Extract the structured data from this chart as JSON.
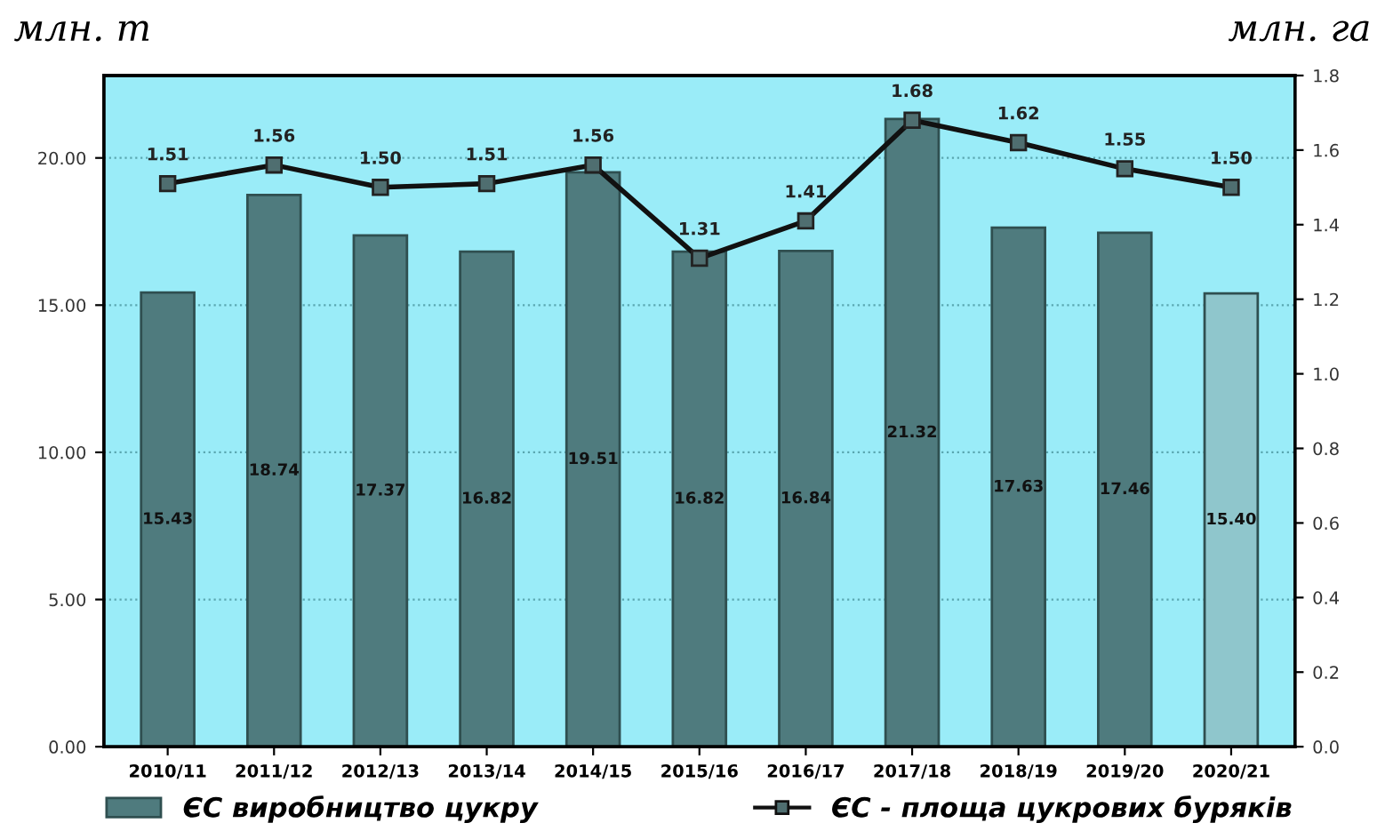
{
  "chart_data": {
    "type": "bar",
    "ylabel": "млн. т",
    "y2label": "млн. га",
    "categories": [
      "2010/11",
      "2011/12",
      "2012/13",
      "2013/14",
      "2014/15",
      "2015/16",
      "2016/17",
      "2017/18",
      "2018/19",
      "2019/20",
      "2020/21"
    ],
    "series": [
      {
        "name": "ЄС виробництво цукру",
        "value_labels": [
          "15.43",
          "18.74",
          "17.37",
          "16.82",
          "19.51",
          "16.82",
          "16.84",
          "21.32",
          "17.63",
          "17.46",
          "15.40"
        ],
        "color": "#4f7b7e",
        "colors": [
          "#4f7b7e",
          "#4f7b7e",
          "#4f7b7e",
          "#4f7b7e",
          "#4f7b7e",
          "#4f7b7e",
          "#4f7b7e",
          "#4f7b7e",
          "#4f7b7e",
          "#4f7b7e",
          "#8fc6cc"
        ],
        "values": [
          15.43,
          18.74,
          17.37,
          16.82,
          19.51,
          16.82,
          16.84,
          21.32,
          17.63,
          17.46,
          15.4
        ]
      },
      {
        "name": "ЄС - площа цукрових буряків",
        "type": "line",
        "axis": "y2",
        "color": "#111111",
        "marker": "square",
        "value_labels": [
          "1.51",
          "1.56",
          "1.50",
          "1.51",
          "1.56",
          "1.31",
          "1.41",
          "1.68",
          "1.62",
          "1.55",
          "1.50"
        ],
        "values": [
          1.51,
          1.56,
          1.5,
          1.51,
          1.56,
          1.31,
          1.41,
          1.68,
          1.62,
          1.55,
          1.5
        ]
      }
    ],
    "ylim": [
      0,
      22.8
    ],
    "yticks": [
      {
        "value": 0,
        "label": "0.00"
      },
      {
        "value": 5,
        "label": "5.00"
      },
      {
        "value": 10,
        "label": "10.00"
      },
      {
        "value": 15,
        "label": "15.00"
      },
      {
        "value": 20,
        "label": "20.00"
      }
    ],
    "y2lim": [
      0,
      1.8
    ],
    "y2ticks": [
      {
        "value": 0,
        "label": "0.0"
      },
      {
        "value": 0.2,
        "label": "0.2"
      },
      {
        "value": 0.4,
        "label": "0.4"
      },
      {
        "value": 0.6,
        "label": "0.6"
      },
      {
        "value": 0.8,
        "label": "0.8"
      },
      {
        "value": 1.0,
        "label": "1.0"
      },
      {
        "value": 1.2,
        "label": "1.2"
      },
      {
        "value": 1.4,
        "label": "1.4"
      },
      {
        "value": 1.6,
        "label": "1.6"
      },
      {
        "value": 1.8,
        "label": "1.8"
      }
    ],
    "grid": "y",
    "legend": "bottom"
  }
}
